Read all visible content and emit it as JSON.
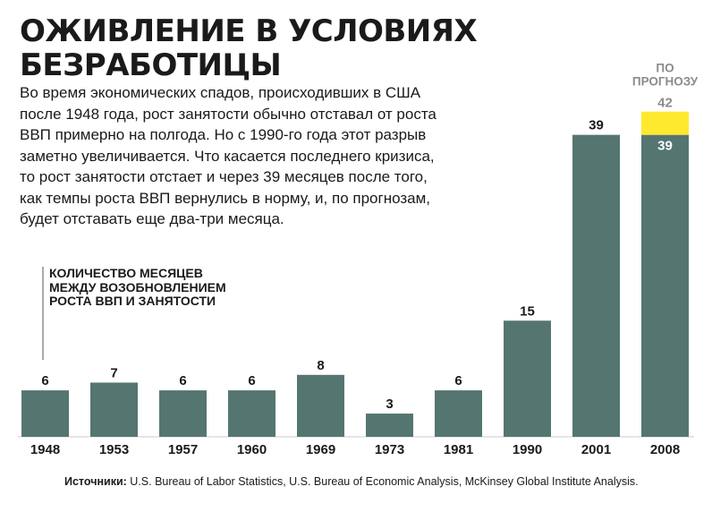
{
  "title": "ОЖИВЛЕНИЕ В УСЛОВИЯХ БЕЗРАБОТИЦЫ",
  "intro": "Во время экономических спадов, происходивших в США после 1948 года, рост занятости обычно отставал от роста ВВП примерно на полгода. Но с 1990-го года этот разрыв заметно увеличивается. Что касается последнего кризиса, то рост занятости отстает и через 39 месяцев после того, как темпы роста ВВП вернулись в норму, и, по прогнозам, будет отставать еще два-три месяца.",
  "source": {
    "label": "Источники:",
    "text": " U.S. Bureau of Labor Statistics, U.S. Bureau of Economic Analysis, McKinsey Global Institute Analysis."
  },
  "colors": {
    "bar": "#557571",
    "forecast": "#ffe92e",
    "forecast_text": "#8c8c8c",
    "axis": "#cccccc"
  },
  "chart_data": {
    "type": "bar",
    "ylabel": "КОЛИЧЕСТВО МЕСЯЦЕВ МЕЖДУ ВОЗОБНОВЛЕНИЕМ РОСТА ВВП И ЗАНЯТОСТИ",
    "categories": [
      "1948",
      "1953",
      "1957",
      "1960",
      "1969",
      "1973",
      "1981",
      "1990",
      "2001",
      "2008"
    ],
    "values": [
      6,
      7,
      6,
      6,
      8,
      3,
      6,
      15,
      39,
      39
    ],
    "forecast": {
      "category": "2008",
      "value": 42,
      "label": "ПО ПРОГНОЗУ"
    },
    "ylim": [
      0,
      42
    ],
    "grid": false
  }
}
